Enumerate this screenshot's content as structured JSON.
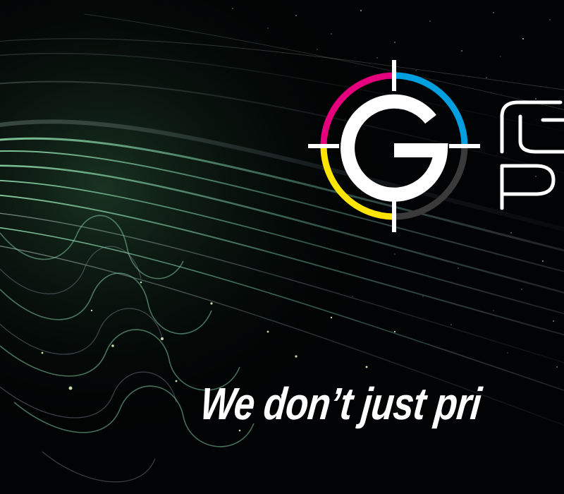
{
  "tagline": "We don’t just pri",
  "logo": {
    "letter": "G",
    "ring_colors": [
      "#e6007e",
      "#00a0e0",
      "#ffe500",
      "#3a3a3a"
    ]
  },
  "background": {
    "base_color": "#020304",
    "fiber_color": "#7fd6a6"
  }
}
